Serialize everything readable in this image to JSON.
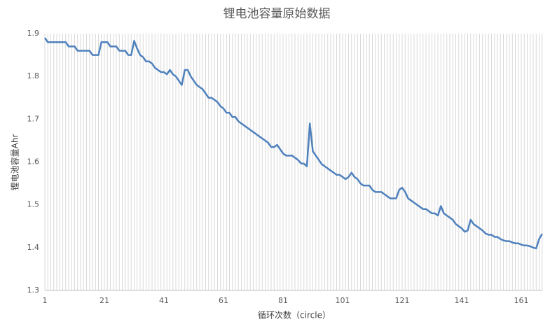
{
  "chart_data": {
    "type": "line",
    "title": "锂电池容量原始数据",
    "x_label": "循环次数（circle）",
    "y_label": "锂电池容量Ahr",
    "x": [
      1,
      2,
      3,
      4,
      5,
      6,
      7,
      8,
      9,
      10,
      11,
      12,
      13,
      14,
      15,
      16,
      17,
      18,
      19,
      20,
      21,
      22,
      23,
      24,
      25,
      26,
      27,
      28,
      29,
      30,
      31,
      32,
      33,
      34,
      35,
      36,
      37,
      38,
      39,
      40,
      41,
      42,
      43,
      44,
      45,
      46,
      47,
      48,
      49,
      50,
      51,
      52,
      53,
      54,
      55,
      56,
      57,
      58,
      59,
      60,
      61,
      62,
      63,
      64,
      65,
      66,
      67,
      68,
      69,
      70,
      71,
      72,
      73,
      74,
      75,
      76,
      77,
      78,
      79,
      80,
      81,
      82,
      83,
      84,
      85,
      86,
      87,
      88,
      89,
      90,
      91,
      92,
      93,
      94,
      95,
      96,
      97,
      98,
      99,
      100,
      101,
      102,
      103,
      104,
      105,
      106,
      107,
      108,
      109,
      110,
      111,
      112,
      113,
      114,
      115,
      116,
      117,
      118,
      119,
      120,
      121,
      122,
      123,
      124,
      125,
      126,
      127,
      128,
      129,
      130,
      131,
      132,
      133,
      134,
      135,
      136,
      137,
      138,
      139,
      140,
      141,
      142,
      143,
      144,
      145,
      146,
      147,
      148,
      149,
      150,
      151,
      152,
      153,
      154,
      155,
      156,
      157,
      158,
      159,
      160,
      161,
      162,
      163,
      164,
      165,
      166,
      167,
      168
    ],
    "series": [
      {
        "name": "锂电池容量",
        "color": "#4f81bd",
        "values": [
          1.89,
          1.88,
          1.88,
          1.88,
          1.88,
          1.88,
          1.88,
          1.88,
          1.87,
          1.87,
          1.87,
          1.86,
          1.86,
          1.86,
          1.86,
          1.86,
          1.85,
          1.85,
          1.85,
          1.88,
          1.88,
          1.88,
          1.87,
          1.87,
          1.87,
          1.86,
          1.86,
          1.86,
          1.85,
          1.85,
          1.883,
          1.865,
          1.85,
          1.845,
          1.835,
          1.835,
          1.83,
          1.82,
          1.815,
          1.81,
          1.81,
          1.805,
          1.815,
          1.805,
          1.8,
          1.79,
          1.78,
          1.815,
          1.815,
          1.8,
          1.79,
          1.78,
          1.775,
          1.77,
          1.76,
          1.75,
          1.75,
          1.745,
          1.74,
          1.73,
          1.725,
          1.715,
          1.715,
          1.705,
          1.705,
          1.695,
          1.69,
          1.685,
          1.68,
          1.675,
          1.67,
          1.665,
          1.66,
          1.655,
          1.65,
          1.645,
          1.635,
          1.635,
          1.64,
          1.63,
          1.62,
          1.615,
          1.615,
          1.615,
          1.61,
          1.605,
          1.597,
          1.596,
          1.59,
          1.69,
          1.625,
          1.615,
          1.605,
          1.595,
          1.59,
          1.585,
          1.58,
          1.575,
          1.57,
          1.57,
          1.565,
          1.56,
          1.565,
          1.575,
          1.565,
          1.56,
          1.55,
          1.545,
          1.545,
          1.545,
          1.535,
          1.53,
          1.53,
          1.53,
          1.525,
          1.52,
          1.515,
          1.515,
          1.515,
          1.535,
          1.54,
          1.53,
          1.515,
          1.51,
          1.505,
          1.5,
          1.495,
          1.49,
          1.49,
          1.485,
          1.48,
          1.48,
          1.475,
          1.497,
          1.48,
          1.475,
          1.47,
          1.465,
          1.455,
          1.45,
          1.445,
          1.437,
          1.44,
          1.465,
          1.455,
          1.45,
          1.445,
          1.44,
          1.433,
          1.43,
          1.43,
          1.425,
          1.425,
          1.42,
          1.417,
          1.415,
          1.415,
          1.412,
          1.41,
          1.41,
          1.407,
          1.405,
          1.405,
          1.403,
          1.4,
          1.398,
          1.42,
          1.432
        ]
      }
    ],
    "xlim": [
      1,
      168
    ],
    "xticks": [
      1,
      21,
      41,
      61,
      81,
      101,
      121,
      141,
      161
    ],
    "ylim": [
      1.3,
      1.9
    ],
    "yticks": [
      {
        "value": 1.3,
        "label": "1.3"
      },
      {
        "value": 1.4,
        "label": "1.4"
      },
      {
        "value": 1.5,
        "label": "1.5"
      },
      {
        "value": 1.6,
        "label": "1.6"
      },
      {
        "value": 1.7,
        "label": "1.7"
      },
      {
        "value": 1.8,
        "label": "1.8"
      },
      {
        "value": 1.9,
        "label": "1.9"
      }
    ],
    "grid": "x"
  }
}
